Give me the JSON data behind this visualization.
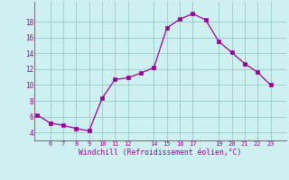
{
  "x": [
    5,
    6,
    7,
    8,
    9,
    10,
    11,
    12,
    13,
    14,
    15,
    16,
    17,
    18,
    19,
    20,
    21,
    22,
    23
  ],
  "y": [
    6.2,
    5.2,
    4.9,
    4.5,
    4.2,
    8.3,
    10.7,
    10.9,
    11.5,
    12.2,
    17.2,
    18.3,
    19.0,
    18.2,
    15.5,
    14.1,
    12.7,
    11.6,
    10.0
  ],
  "line_color": "#990099",
  "marker_color": "#990099",
  "bg_color": "#cff0f0",
  "grid_color": "#9ecece",
  "xlabel": "Windchill (Refroidissement éolien,°C)",
  "xlabel_color": "#990099",
  "xticks": [
    6,
    7,
    8,
    9,
    10,
    11,
    12,
    14,
    15,
    16,
    17,
    19,
    20,
    21,
    22,
    23
  ],
  "yticks": [
    4,
    6,
    8,
    10,
    12,
    14,
    16,
    18
  ],
  "ylim": [
    3.0,
    20.5
  ],
  "xlim": [
    4.8,
    24.2
  ]
}
